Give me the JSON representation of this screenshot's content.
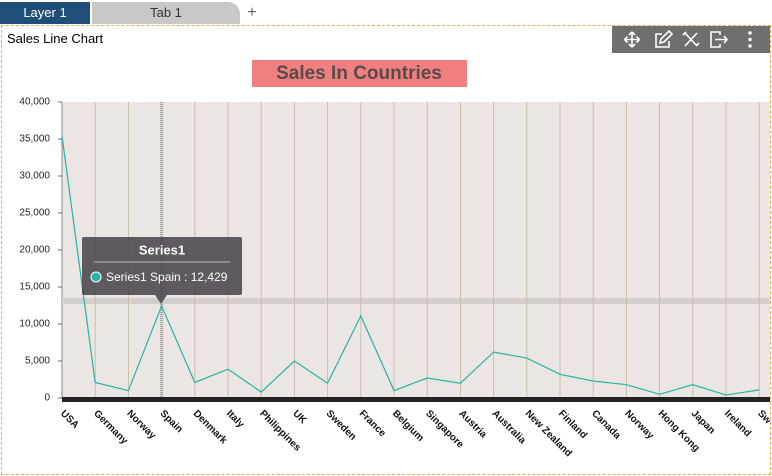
{
  "tabs": [
    "Layer 1",
    "Tab 1",
    "+"
  ],
  "widget_title": "Sales Line Chart",
  "tooltip": {
    "title": "Series1",
    "text": "Series1 Spain : 12,429"
  },
  "chart_data": {
    "type": "line",
    "title": "Sales In Countries",
    "categories": [
      "USA",
      "Germany",
      "Norway",
      "Spain",
      "Denmark",
      "Italy",
      "Philippines",
      "UK",
      "Sweden",
      "France",
      "Belgium",
      "Singapore",
      "Austria",
      "Australia",
      "New Zealand",
      "Finland",
      "Canada",
      "Norway",
      "Hong Kong",
      "Japan",
      "Ireland",
      "Sw"
    ],
    "series": [
      {
        "name": "Series1",
        "color": "#26b5a6",
        "values": [
          35400,
          2100,
          1000,
          12429,
          2100,
          3900,
          800,
          5000,
          2000,
          11100,
          1000,
          2700,
          2000,
          6200,
          5400,
          3200,
          2300,
          1800,
          500,
          1800,
          400,
          1100
        ]
      }
    ],
    "ylim": [
      0,
      40000
    ],
    "yticks": [
      0,
      {
        "value": 5000,
        "label": "5,000"
      },
      {
        "value": 10000,
        "label": "10,000"
      },
      {
        "value": 15000,
        "label": "15,000"
      },
      {
        "value": 20000,
        "label": "20,000"
      },
      {
        "value": 25000,
        "label": "25,000"
      },
      {
        "value": 30000,
        "label": "30,000"
      },
      {
        "value": 35000,
        "label": "35,000"
      },
      {
        "value": 40000,
        "label": "40,000"
      }
    ],
    "grid": true
  }
}
